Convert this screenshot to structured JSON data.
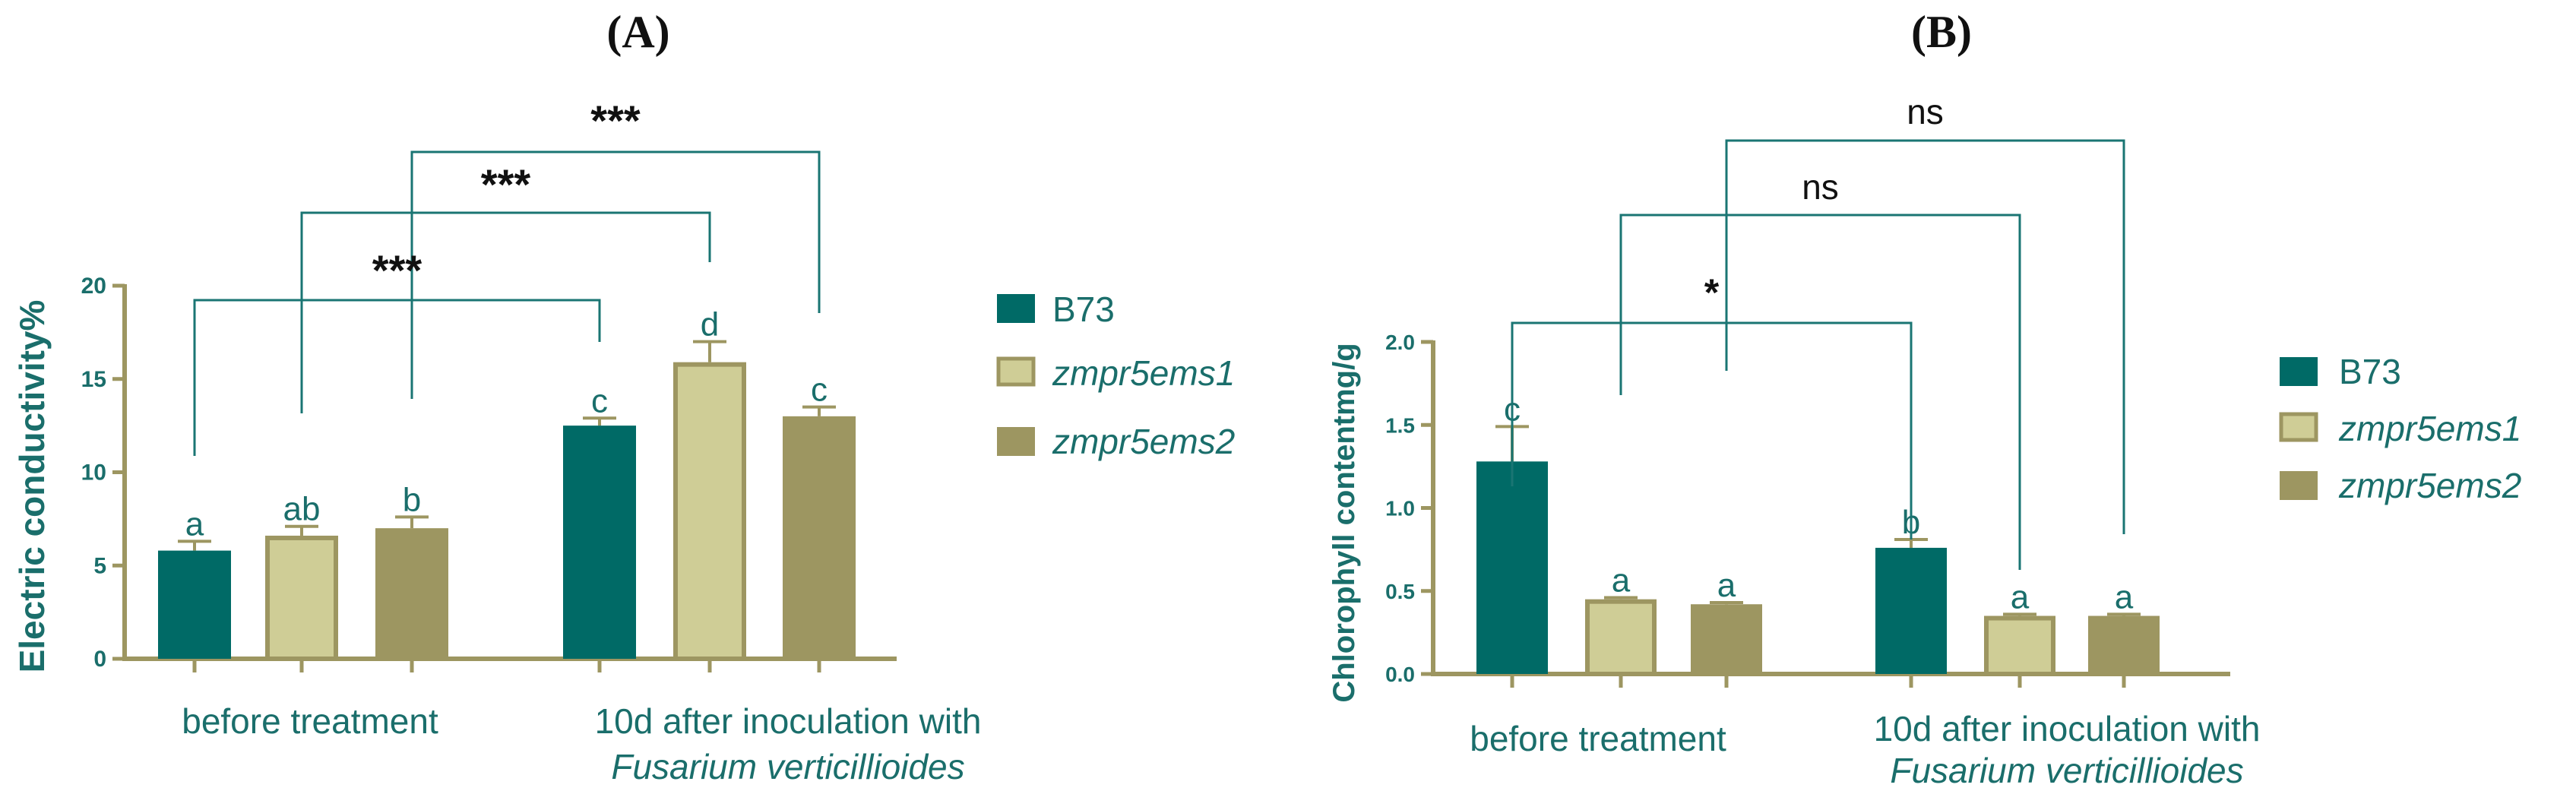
{
  "colors": {
    "B73": "#006a66",
    "zmpr5ems1": "#cfcd96",
    "zmpr5ems2": "#9d9661",
    "axis": "#9d9661",
    "text": "#1a6e6b",
    "bracket": "#1a7573",
    "title": "#111111"
  },
  "panel_a": {
    "label": "(A)",
    "legend": {
      "B73": "B73",
      "zmpr5ems1": "zmpr5ems1",
      "zmpr5ems2": "zmpr5ems2"
    },
    "group1_label": "before treatment",
    "group2_line1": "10d after inoculation with",
    "group2_line2": "Fusarium verticillioides",
    "sig": {
      "s1": "***",
      "s2": "***",
      "s3": "***"
    }
  },
  "panel_b": {
    "label": "(B)",
    "legend": {
      "B73": "B73",
      "zmpr5ems1": "zmpr5ems1",
      "zmpr5ems2": "zmpr5ems2"
    },
    "group1_label": "before treatment",
    "group2_line1": "10d after inoculation with",
    "group2_line2": "Fusarium verticillioides",
    "sig": {
      "s1": "*",
      "s2": "ns",
      "s3": "ns"
    }
  },
  "chart_data": [
    {
      "type": "bar",
      "title": "(A)",
      "ylabel": "Electric conductivity%",
      "ylim": [
        0,
        20
      ],
      "yticks": [
        "0",
        "5",
        "10",
        "15",
        "20"
      ],
      "categories": [
        "before treatment",
        "10d after inoculation with Fusarium verticillioides"
      ],
      "series": [
        {
          "name": "B73",
          "values": [
            5.8,
            12.5
          ],
          "errors": [
            0.5,
            0.4
          ],
          "letters": [
            "a",
            "c"
          ]
        },
        {
          "name": "zmpr5ems1",
          "values": [
            6.6,
            15.9
          ],
          "errors": [
            0.5,
            1.1
          ],
          "letters": [
            "ab",
            "d"
          ]
        },
        {
          "name": "zmpr5ems2",
          "values": [
            7.0,
            13.0
          ],
          "errors": [
            0.6,
            0.5
          ],
          "letters": [
            "b",
            "c"
          ]
        }
      ],
      "significance": [
        {
          "compare": "B73: before vs after",
          "label": "***"
        },
        {
          "compare": "zmpr5ems1: before vs after",
          "label": "***"
        },
        {
          "compare": "zmpr5ems2: before vs after",
          "label": "***"
        }
      ]
    },
    {
      "type": "bar",
      "title": "(B)",
      "ylabel": "Chlorophyll contentmg/g",
      "ylim": [
        0,
        2.0
      ],
      "yticks": [
        "0.0",
        "0.5",
        "1.0",
        "1.5",
        "2.0"
      ],
      "categories": [
        "before treatment",
        "10d after inoculation with Fusarium verticillioides"
      ],
      "series": [
        {
          "name": "B73",
          "values": [
            1.28,
            0.76
          ],
          "errors": [
            0.21,
            0.05
          ],
          "letters": [
            "c",
            "b"
          ]
        },
        {
          "name": "zmpr5ems1",
          "values": [
            0.45,
            0.35
          ],
          "errors": [
            0.01,
            0.01
          ],
          "letters": [
            "a",
            "a"
          ]
        },
        {
          "name": "zmpr5ems2",
          "values": [
            0.42,
            0.35
          ],
          "errors": [
            0.01,
            0.01
          ],
          "letters": [
            "a",
            "a"
          ]
        }
      ],
      "significance": [
        {
          "compare": "B73: before vs after",
          "label": "*"
        },
        {
          "compare": "zmpr5ems1: before vs after",
          "label": "ns"
        },
        {
          "compare": "zmpr5ems2: before vs after",
          "label": "ns"
        }
      ]
    }
  ]
}
